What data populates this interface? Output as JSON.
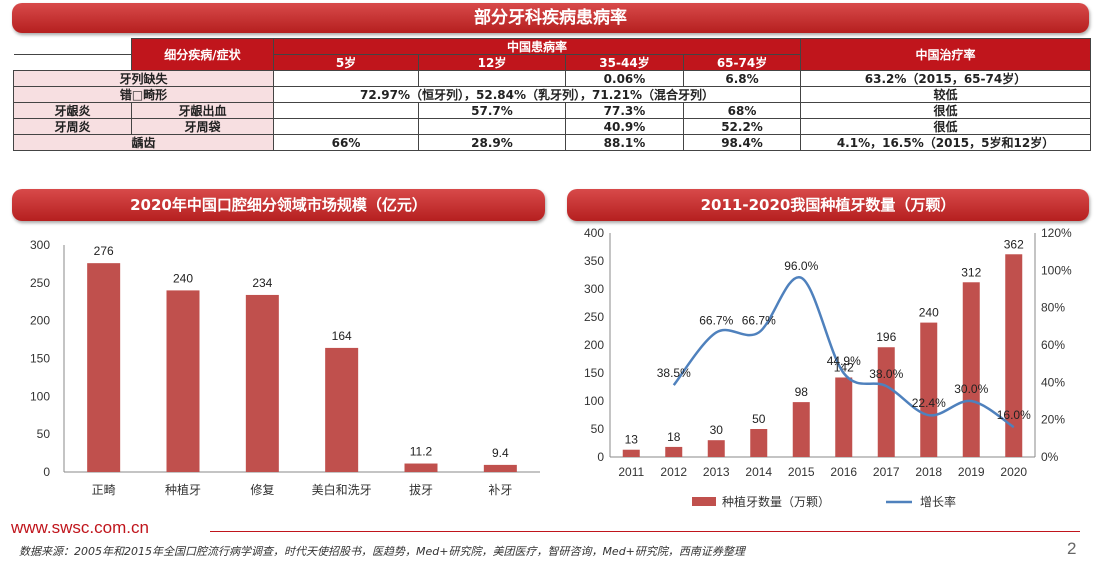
{
  "table": {
    "title": "部分牙科疾病患病率",
    "header": {
      "subcat": "细分疾病/症状",
      "china_rate": "中国患病率",
      "treat_rate": "中国治疗率",
      "ages": [
        "5岁",
        "12岁",
        "35-44岁",
        "65-74岁"
      ]
    },
    "rows": {
      "r1": {
        "label": "牙列缺失",
        "c1": "",
        "c2": "",
        "c3": "0.06%",
        "c4": "6.8%",
        "treat": "63.2%（2015，65-74岁）"
      },
      "r2": {
        "label": "错□畸形",
        "merged": "72.97%（恒牙列），52.84%（乳牙列），71.21%（混合牙列）",
        "treat": "较低"
      },
      "r3": {
        "label_a": "牙龈炎",
        "label_b": "牙龈出血",
        "c1": "",
        "c2": "57.7%",
        "c3": "77.3%",
        "c4": "68%",
        "treat": "很低"
      },
      "r4": {
        "label_a": "牙周炎",
        "label_b": "牙周袋",
        "c1": "",
        "c2": "",
        "c3": "40.9%",
        "c4": "52.2%",
        "treat": "很低"
      },
      "r5": {
        "label": "龋齿",
        "c1": "66%",
        "c2": "28.9%",
        "c3": "88.1%",
        "c4": "98.4%",
        "treat": "4.1%，16.5%（2015，5岁和12岁）"
      }
    }
  },
  "left_chart_title": "2020年中国口腔细分领域市场规模（亿元）",
  "right_chart_title": "2011-2020我国种植牙数量（万颗）",
  "chart_data": [
    {
      "type": "bar",
      "title": "2020年中国口腔细分领域市场规模（亿元）",
      "categories": [
        "正畸",
        "种植牙",
        "修复",
        "美白和洗牙",
        "拔牙",
        "补牙"
      ],
      "values": [
        276,
        240,
        234,
        164,
        11.2,
        9.4
      ],
      "ylim": [
        0,
        300
      ],
      "yticks": [
        0,
        50,
        100,
        150,
        200,
        250,
        300
      ],
      "color": "#c0504d"
    },
    {
      "type": "bar+line",
      "title": "2011-2020我国种植牙数量（万颗）",
      "categories": [
        "2011",
        "2012",
        "2013",
        "2014",
        "2015",
        "2016",
        "2017",
        "2018",
        "2019",
        "2020"
      ],
      "series": [
        {
          "name": "种植牙数量（万颗）",
          "type": "bar",
          "axis": "left",
          "values": [
            13,
            18,
            30,
            50,
            98,
            142,
            196,
            240,
            312,
            362
          ],
          "color": "#c0504d"
        },
        {
          "name": "增长率",
          "type": "line",
          "axis": "right",
          "values": [
            null,
            38.5,
            66.7,
            66.7,
            96.0,
            44.9,
            38.0,
            22.4,
            30.0,
            16.0
          ],
          "labels": [
            "",
            "38.5%",
            "66.7%",
            "66.7%",
            "96.0%",
            "44.9%",
            "38.0%",
            "22.4%",
            "30.0%",
            "16.0%"
          ],
          "color": "#4f81bd"
        }
      ],
      "ylim_left": [
        0,
        400
      ],
      "yticks_left": [
        0,
        50,
        100,
        150,
        200,
        250,
        300,
        350,
        400
      ],
      "ylim_right": [
        0,
        120
      ],
      "yticks_right": [
        "0%",
        "20%",
        "40%",
        "60%",
        "80%",
        "100%",
        "120%"
      ],
      "legend_position": "bottom"
    }
  ],
  "footer": {
    "source": "数据来源：2005年和2015年全国口腔流行病学调查，时代天使招股书，医趋势，Med+研究院，美团医疗，智研咨询，Med+研究院，西南证券整理",
    "brand": "www.swsc.com.cn",
    "page": "2"
  }
}
